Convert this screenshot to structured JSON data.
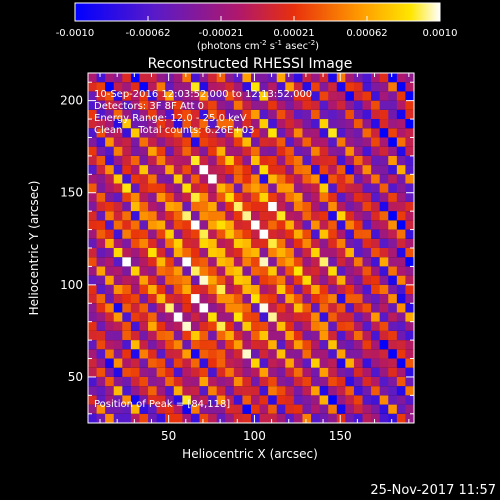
{
  "chart_data": {
    "type": "heatmap",
    "title": "Reconstructed RHESSI Image",
    "colorbar": {
      "ticks": [
        "-0.0010",
        "-0.00062",
        "-0.00021",
        "0.00021",
        "0.00062",
        "0.0010"
      ],
      "range": [
        -0.001,
        0.001
      ],
      "colormap": "blue-purple-red-orange-yellow-white",
      "units_prefix": "(photons cm",
      "units_sup1": "-2",
      "units_mid": " s",
      "units_sup2": "-1",
      "units_mid2": " asec",
      "units_sup3": "-2",
      "units_suffix": ")"
    },
    "info": {
      "line1": "10-Sep-2016 12:03:52.000 to 12:13:52.000",
      "line2": "Detectors: 3F 8F  Att 0",
      "line3": "Energy Range: 12.0 - 25.0 keV",
      "line4": "Clean     Total counts: 6.26E+03"
    },
    "peak_text": "Position of Peak = [84,118]",
    "peak": [
      84,
      118
    ],
    "xlabel": "Heliocentric X (arcsec)",
    "ylabel": "Heliocentric Y (arcsec)",
    "xlim": [
      3,
      193
    ],
    "ylim": [
      25,
      215
    ],
    "xticks": [
      {
        "value": 50,
        "label": "50"
      },
      {
        "value": 100,
        "label": "100"
      },
      {
        "value": 150,
        "label": "150"
      }
    ],
    "yticks": [
      {
        "value": 50,
        "label": "50"
      },
      {
        "value": 100,
        "label": "100"
      },
      {
        "value": 150,
        "label": "150"
      },
      {
        "value": 200,
        "label": "200"
      }
    ],
    "grid": false
  },
  "footer": {
    "timestamp": "25-Nov-2017 11:57"
  }
}
